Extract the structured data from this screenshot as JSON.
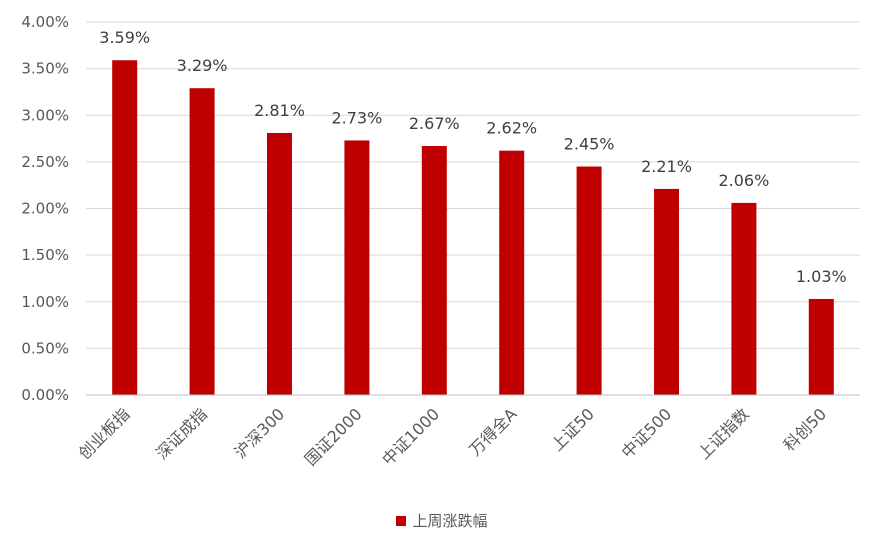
{
  "chart_data": {
    "type": "bar",
    "categories": [
      "创业板指",
      "深证成指",
      "沪深300",
      "国证2000",
      "中证1000",
      "万得全A",
      "上证50",
      "中证500",
      "上证指数",
      "科创50"
    ],
    "series": [
      {
        "name": "上周涨跌幅",
        "values": [
          3.59,
          3.29,
          2.81,
          2.73,
          2.67,
          2.62,
          2.45,
          2.21,
          2.06,
          1.03
        ],
        "data_labels": [
          "3.59%",
          "3.29%",
          "2.81%",
          "2.73%",
          "2.67%",
          "2.62%",
          "2.45%",
          "2.21%",
          "2.06%",
          "1.03%"
        ]
      }
    ],
    "y_ticks": [
      0,
      0.5,
      1.0,
      1.5,
      2.0,
      2.5,
      3.0,
      3.5,
      4.0
    ],
    "y_tick_labels": [
      "0.00%",
      "0.50%",
      "1.00%",
      "1.50%",
      "2.00%",
      "2.50%",
      "3.00%",
      "3.50%",
      "4.00%"
    ],
    "ylim": [
      0,
      4.0
    ],
    "grid": true,
    "legend_position": "bottom",
    "colors": {
      "bar": "#C00000",
      "grid": "#D9D9D9",
      "text": "#595959"
    }
  },
  "legend": {
    "label": "上周涨跌幅"
  }
}
